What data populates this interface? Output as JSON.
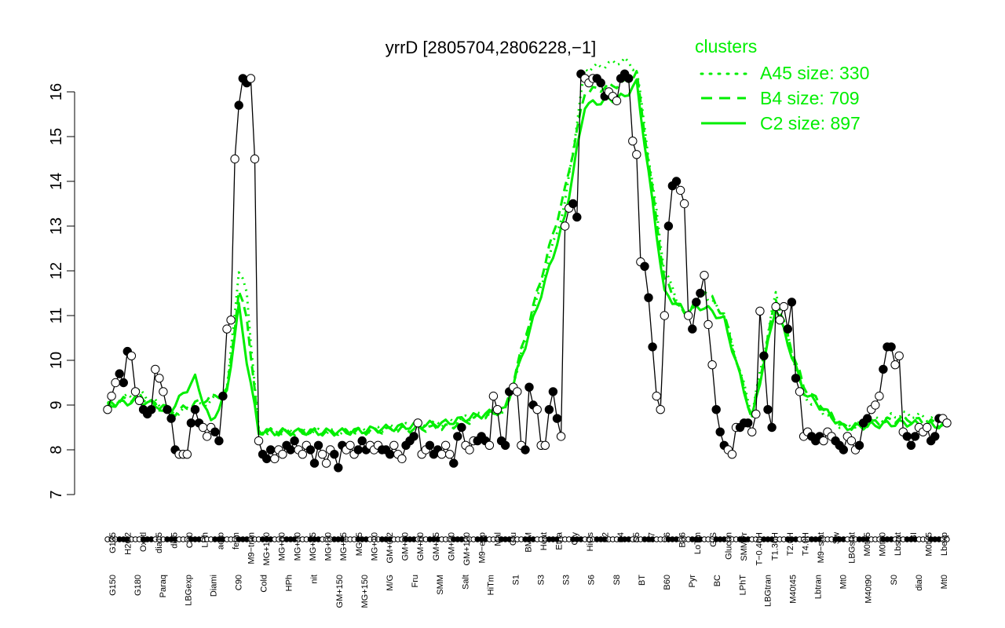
{
  "chart_data": {
    "type": "line",
    "title": "yrrD [2805704,2806228,−1]",
    "ylim": [
      7,
      16.5
    ],
    "yticks": [
      "7",
      "8",
      "9",
      "10",
      "11",
      "12",
      "13",
      "14",
      "15",
      "16"
    ],
    "legend": {
      "title": "clusters",
      "placement": "top-right",
      "color": "#00ee00",
      "entries": [
        {
          "label": "A45 size: 330",
          "style": "dotted"
        },
        {
          "label": "B4 size: 709",
          "style": "dashed"
        },
        {
          "label": "C2 size: 897",
          "style": "solid"
        }
      ]
    },
    "colors": {
      "line": "#000000",
      "cluster": "#00ee00",
      "point_open": "#ffffff",
      "point_filled": "#000000"
    },
    "x_labels_upper": [
      "G135",
      "H2O2",
      "Oxctl",
      "dia15",
      "dia5",
      "C30",
      "LPh",
      "aero",
      "ferm",
      "M9−tran",
      "MG+120",
      "MG+60",
      "MG+90",
      "MG+45",
      "MG+30",
      "MG+15",
      "MG+5",
      "MG+10",
      "GM+0.2",
      "GM+90",
      "GM+60",
      "GM+45",
      "GM+30",
      "GM+120",
      "M9−exp",
      "Mal",
      "Glu",
      "BMM",
      "Heat",
      "Etha",
      "Gly",
      "HiOs",
      "S2",
      "S4",
      "S5",
      "S7",
      "S6",
      "B36",
      "LoTm",
      "G/S",
      "Glucon",
      "SMMPr",
      "T−0.40H",
      "T1.30H",
      "T2.0H",
      "T4.0H",
      "M9−stat",
      "Sw",
      "LBGstat",
      "M0t45",
      "M0t90",
      "Lbstat",
      "BI",
      "M0t45",
      "Lbexp"
    ],
    "x_labels_lower": [
      "G150",
      "G180",
      "Paraq",
      "LBGexp",
      "Diami",
      "C90",
      "Cold",
      "HPh",
      "nit",
      "GM+150",
      "MG+150",
      "M/G",
      "Fru",
      "SMM",
      "Salt",
      "HiTm",
      "S1",
      "S3",
      "S3",
      "S6",
      "S8",
      "BT",
      "B60",
      "Pyr",
      "BC",
      "LPhT",
      "LBGtran",
      "M40t45",
      "Lbtran",
      "Mt0",
      "M40t90",
      "S0",
      "dia0",
      "Mt0"
    ],
    "series": [
      {
        "values": [
          8.9,
          9.2,
          9.5,
          9.7,
          9.5,
          10.2,
          10.1,
          9.3,
          9.1,
          8.9,
          8.8,
          8.9,
          9.8,
          9.6,
          9.3,
          8.9,
          8.7,
          8.0,
          7.9,
          7.9,
          7.9,
          8.6,
          8.9,
          8.6,
          8.5,
          8.3,
          8.5,
          8.4,
          8.2,
          9.2,
          10.7,
          10.9,
          14.5,
          15.7,
          16.3,
          16.2,
          16.3,
          14.5,
          8.2,
          7.9,
          7.8,
          8.0,
          7.8,
          8.0,
          7.9,
          8.1,
          8.0,
          8.2,
          8.0,
          7.9,
          8.1,
          8.0,
          7.7,
          8.1,
          7.9,
          7.7,
          8.0,
          7.9,
          7.6,
          8.1,
          8.0,
          8.1,
          7.9,
          8.0,
          8.2,
          8.0,
          8.1,
          8.0,
          8.1,
          8.0,
          8.0,
          7.9,
          8.1,
          7.9,
          7.8,
          8.1,
          8.2,
          8.3,
          8.6,
          7.9,
          8.0,
          8.1,
          7.9,
          8.0,
          7.9,
          8.1,
          7.9,
          7.7,
          8.3,
          8.5,
          8.1,
          8.0,
          8.2,
          8.2,
          8.3,
          8.2,
          8.1,
          9.2,
          8.9,
          8.2,
          8.1,
          9.3,
          9.4,
          9.3,
          8.1,
          8.0,
          9.4,
          9.0,
          8.9,
          8.1,
          8.1,
          8.9,
          9.3,
          8.7,
          8.3,
          13.0,
          13.4,
          13.5,
          13.2,
          16.4,
          16.3,
          16.2,
          16.3,
          16.3,
          16.2,
          15.9,
          16.0,
          15.9,
          15.8,
          16.3,
          16.4,
          16.3,
          14.9,
          14.6,
          12.2,
          12.1,
          11.4,
          10.3,
          9.2,
          8.9,
          11.0,
          13.0,
          13.9,
          14.0,
          13.8,
          13.5,
          11.0,
          10.7,
          11.3,
          11.5,
          11.9,
          10.8,
          9.9,
          8.9,
          8.4,
          8.1,
          8.0,
          7.9,
          8.5,
          8.5,
          8.6,
          8.6,
          8.4,
          8.8,
          11.1,
          10.1,
          8.9,
          8.5,
          11.2,
          10.9,
          11.2,
          10.7,
          11.3,
          9.6,
          9.3,
          8.3,
          8.4,
          8.3,
          8.2,
          8.3,
          8.2,
          8.4,
          8.3,
          8.2,
          8.1,
          8.0,
          8.3,
          8.2,
          8.0,
          8.1,
          8.6,
          8.7,
          8.9,
          9.0,
          9.2,
          9.8,
          10.3,
          10.3,
          9.9,
          10.1,
          8.4,
          8.3,
          8.1,
          8.3,
          8.5,
          8.4,
          8.5,
          8.2,
          8.3,
          8.7,
          8.7,
          8.6
        ]
      },
      {
        "name": "A45 size: 330",
        "style": "dotted",
        "anchors": [
          [
            0,
            9.0
          ],
          [
            8,
            9.3
          ],
          [
            16,
            8.8
          ],
          [
            24,
            9.0
          ],
          [
            30,
            9.3
          ],
          [
            33,
            12.0
          ],
          [
            35,
            11.5
          ],
          [
            38,
            8.4
          ],
          [
            60,
            8.4
          ],
          [
            85,
            8.6
          ],
          [
            100,
            8.9
          ],
          [
            115,
            13.5
          ],
          [
            120,
            16.5
          ],
          [
            130,
            16.7
          ],
          [
            133,
            16.5
          ],
          [
            140,
            12.0
          ],
          [
            145,
            11.0
          ],
          [
            150,
            11.5
          ],
          [
            155,
            11.0
          ],
          [
            162,
            8.8
          ],
          [
            168,
            11.5
          ],
          [
            175,
            9.2
          ],
          [
            185,
            8.5
          ],
          [
            200,
            8.8
          ],
          [
            215,
            8.6
          ]
        ]
      },
      {
        "name": "B4 size: 709",
        "style": "dashed",
        "anchors": [
          [
            0,
            9.0
          ],
          [
            8,
            9.2
          ],
          [
            16,
            8.8
          ],
          [
            24,
            9.1
          ],
          [
            30,
            9.3
          ],
          [
            33,
            11.5
          ],
          [
            35,
            11.0
          ],
          [
            38,
            8.4
          ],
          [
            60,
            8.4
          ],
          [
            85,
            8.5
          ],
          [
            100,
            8.9
          ],
          [
            115,
            13.8
          ],
          [
            120,
            16.0
          ],
          [
            130,
            16.2
          ],
          [
            133,
            16.4
          ],
          [
            140,
            11.8
          ],
          [
            145,
            11.0
          ],
          [
            150,
            11.6
          ],
          [
            155,
            11.0
          ],
          [
            162,
            8.7
          ],
          [
            168,
            11.4
          ],
          [
            175,
            9.4
          ],
          [
            185,
            8.5
          ],
          [
            200,
            8.7
          ],
          [
            215,
            8.5
          ]
        ]
      },
      {
        "name": "C2 size: 897",
        "style": "solid",
        "anchors": [
          [
            0,
            9.0
          ],
          [
            8,
            9.1
          ],
          [
            16,
            8.9
          ],
          [
            22,
            9.6
          ],
          [
            26,
            8.6
          ],
          [
            30,
            9.3
          ],
          [
            33,
            11.2
          ],
          [
            35,
            10.0
          ],
          [
            38,
            8.4
          ],
          [
            60,
            8.4
          ],
          [
            85,
            8.6
          ],
          [
            100,
            8.9
          ],
          [
            115,
            13.2
          ],
          [
            120,
            15.7
          ],
          [
            130,
            15.9
          ],
          [
            133,
            16.2
          ],
          [
            140,
            11.5
          ],
          [
            145,
            11.1
          ],
          [
            150,
            11.2
          ],
          [
            155,
            10.9
          ],
          [
            162,
            8.7
          ],
          [
            168,
            11.2
          ],
          [
            175,
            9.3
          ],
          [
            185,
            8.5
          ],
          [
            200,
            8.6
          ],
          [
            215,
            8.5
          ]
        ]
      }
    ]
  }
}
